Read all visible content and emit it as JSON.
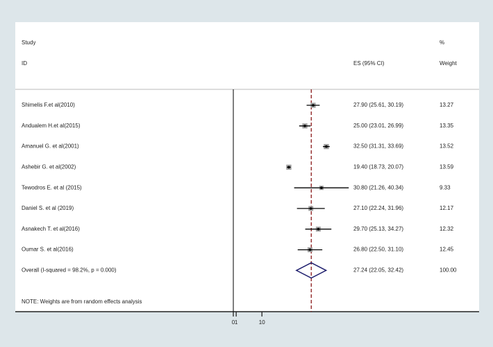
{
  "chart_data": {
    "type": "forest",
    "headers": {
      "study": "Study",
      "id": "ID",
      "es": "ES (95% CI)",
      "pct": "%",
      "weight": "Weight"
    },
    "studies": [
      "Shimelis F.et al(2010)",
      "Andualem H.et al(2015)",
      "Amanuel G. et al(2001)",
      "Ashebir G. et al(2002)",
      "Tewodros E. et al (2015)",
      "Daniel S. et al (2019)",
      "Asnakech T. et al(2016)",
      "Oumar S. et al(2016)"
    ],
    "es": [
      27.9,
      25.0,
      32.5,
      19.4,
      30.8,
      27.1,
      29.7,
      26.8
    ],
    "ci_lower": [
      25.61,
      23.01,
      31.31,
      18.73,
      21.26,
      22.24,
      25.13,
      22.5
    ],
    "ci_upper": [
      30.19,
      26.99,
      33.69,
      20.07,
      40.34,
      31.96,
      34.27,
      31.1
    ],
    "value_labels": [
      "27.90 (25.61, 30.19)",
      "25.00 (23.01, 26.99)",
      "32.50 (31.31, 33.69)",
      "19.40 (18.73, 20.07)",
      "30.80 (21.26, 40.34)",
      "27.10 (22.24, 31.96)",
      "29.70 (25.13, 34.27)",
      "26.80 (22.50, 31.10)"
    ],
    "weights": [
      13.27,
      13.35,
      13.52,
      13.59,
      9.33,
      12.17,
      12.32,
      12.45
    ],
    "overall": {
      "label": "Overall  (I-squared = 98.2%, p = 0.000)",
      "es": 27.24,
      "ci_lower": 22.05,
      "ci_upper": 32.42,
      "value_label": "27.24 (22.05, 32.42)",
      "weight": {
        "value": 100,
        "label": "100.00"
      }
    },
    "note": "NOTE: Weights are from random effects analysis",
    "null_line": 0,
    "xlim": [
      -76.2,
      85.9
    ],
    "xticks": [
      0,
      1,
      10
    ],
    "box_color": "#a0a0a0",
    "ci_color": "#000000",
    "diamond_color": "#1f1f6e",
    "overall_line_color": "#8b1a1a"
  }
}
